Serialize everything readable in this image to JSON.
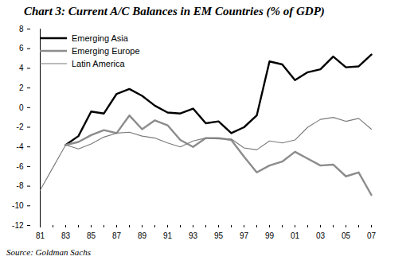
{
  "chart_data": {
    "type": "line",
    "title": "Chart 3: Current A/C Balances in EM Countries (% of GDP)",
    "caption": "Source: Goldman Sachs",
    "categories": [
      "81",
      null,
      "83",
      null,
      "85",
      null,
      "87",
      null,
      "89",
      null,
      "91",
      null,
      "93",
      null,
      "95",
      null,
      "97",
      null,
      "99",
      null,
      "01",
      null,
      "03",
      null,
      "05",
      null,
      "07"
    ],
    "series": [
      {
        "name": "Emerging Asia",
        "color": "#000000",
        "line_style": "thick",
        "values": [
          null,
          null,
          -3.8,
          -2.9,
          -0.4,
          -0.6,
          1.4,
          1.9,
          1.2,
          0.2,
          -0.5,
          -0.6,
          -0.1,
          -1.6,
          -1.4,
          -2.6,
          -2.0,
          -0.8,
          4.7,
          4.4,
          2.8,
          3.6,
          3.9,
          5.2,
          4.1,
          4.2,
          5.4
        ]
      },
      {
        "name": "Emerging Europe",
        "color": "#8c8c8c",
        "line_style": "thick",
        "values": [
          null,
          null,
          -3.8,
          -3.5,
          -2.8,
          -2.3,
          -2.6,
          -0.8,
          -2.2,
          -1.3,
          -1.8,
          -3.3,
          -4.0,
          -3.1,
          -3.1,
          -3.3,
          -5.0,
          -6.6,
          -5.9,
          -5.5,
          -4.5,
          -5.2,
          -5.9,
          -5.8,
          -7.0,
          -6.6,
          -8.9
        ]
      },
      {
        "name": "Latin America",
        "color": "#7a7a7a",
        "line_style": "thin",
        "values": [
          -8.4,
          -6.1,
          -3.8,
          -4.2,
          -3.7,
          -3.0,
          -2.6,
          -2.5,
          -2.9,
          -3.1,
          -3.6,
          -4.0,
          -3.4,
          -3.1,
          -3.2,
          -3.2,
          -4.1,
          -4.3,
          -3.4,
          -3.6,
          -3.3,
          -2.0,
          -1.2,
          -1.0,
          -1.4,
          -1.1,
          -2.2
        ]
      }
    ],
    "ylim": [
      -12,
      8
    ],
    "yticks": [
      -12,
      -10,
      -8,
      -6,
      -4,
      -2,
      0,
      2,
      4,
      6,
      8
    ],
    "grid": false,
    "legend": "top-left"
  }
}
